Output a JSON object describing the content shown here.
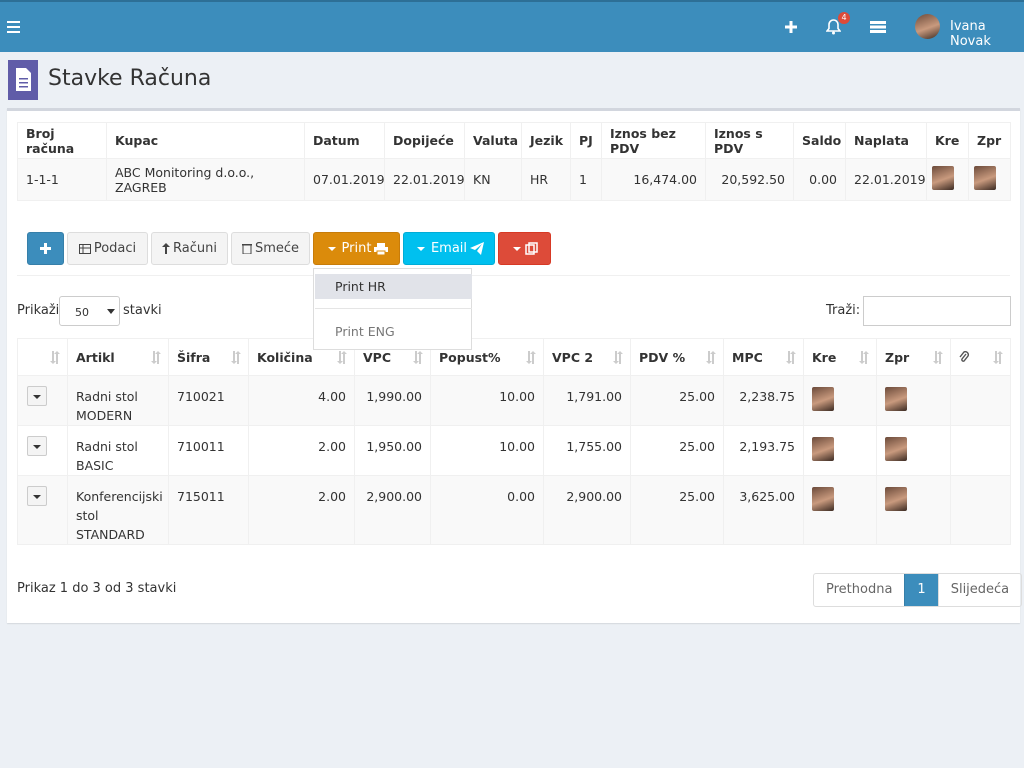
{
  "topbar": {
    "user": "Ivana Novak",
    "notifications": "4"
  },
  "page": {
    "title": "Stavke Računa"
  },
  "invoice": {
    "headers": [
      "Broj računa",
      "Kupac",
      "Datum",
      "Dopijeće",
      "Valuta",
      "Jezik",
      "PJ",
      "Iznos bez PDV",
      "Iznos s PDV",
      "Saldo",
      "Naplata",
      "Kre",
      "Zpr"
    ],
    "rows": [
      [
        "1-1-1",
        "ABC Monitoring d.o.o., ZAGREB",
        "07.01.2019",
        "22.01.2019",
        "KN",
        "HR",
        "1",
        "16,474.00",
        "20,592.50",
        "0.00",
        "22.01.2019"
      ]
    ]
  },
  "toolbar": {
    "buttons": [
      "Podaci",
      "Računi",
      "Smeće",
      "Print",
      "Email"
    ],
    "print_menu": [
      "Print HR",
      "Print ENG"
    ]
  },
  "list": {
    "show_label": "Prikaži",
    "page_size": "50",
    "entries_label": "stavki",
    "search_label": "Traži:"
  },
  "items": {
    "headers": [
      "Artikl",
      "Šifra",
      "Količina",
      "VPC",
      "Popust%",
      "VPC 2",
      "PDV %",
      "MPC",
      "Kre",
      "Zpr"
    ],
    "rows": [
      [
        "Radni stol MODERN",
        "710021",
        "4.00",
        "1,990.00",
        "10.00",
        "1,791.00",
        "25.00",
        "2,238.75"
      ],
      [
        "Radni stol BASIC",
        "710011",
        "2.00",
        "1,950.00",
        "10.00",
        "1,755.00",
        "25.00",
        "2,193.75"
      ],
      [
        "Konferencijski stol STANDARD",
        "715011",
        "2.00",
        "2,900.00",
        "0.00",
        "2,900.00",
        "25.00",
        "3,625.00"
      ]
    ]
  },
  "footer": {
    "info": "Prikaz 1 do 3 od 3 stavki",
    "pagination": [
      "Prethodna",
      "1",
      "Slijedeća"
    ]
  }
}
